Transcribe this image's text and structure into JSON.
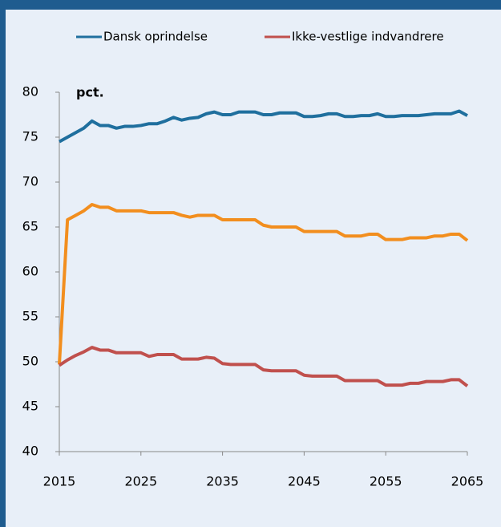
{
  "chart_data": {
    "type": "line",
    "ylabel": "pct.",
    "x": [
      2015,
      2016,
      2017,
      2018,
      2019,
      2020,
      2021,
      2022,
      2023,
      2024,
      2025,
      2026,
      2027,
      2028,
      2029,
      2030,
      2031,
      2032,
      2033,
      2034,
      2035,
      2036,
      2037,
      2038,
      2039,
      2040,
      2041,
      2042,
      2043,
      2044,
      2045,
      2046,
      2047,
      2048,
      2049,
      2050,
      2051,
      2052,
      2053,
      2054,
      2055,
      2056,
      2057,
      2058,
      2059,
      2060,
      2061,
      2062,
      2063,
      2064,
      2065
    ],
    "series": [
      {
        "name": "Dansk oprindelse",
        "color": "#1f6f9e",
        "values": [
          74.5,
          75.0,
          75.5,
          76.0,
          76.8,
          76.3,
          76.3,
          76.0,
          76.2,
          76.2,
          76.3,
          76.5,
          76.5,
          76.8,
          77.2,
          76.9,
          77.1,
          77.2,
          77.6,
          77.8,
          77.5,
          77.5,
          77.8,
          77.8,
          77.8,
          77.5,
          77.5,
          77.7,
          77.7,
          77.7,
          77.3,
          77.3,
          77.4,
          77.6,
          77.6,
          77.3,
          77.3,
          77.4,
          77.4,
          77.6,
          77.3,
          77.3,
          77.4,
          77.4,
          77.4,
          77.5,
          77.6,
          77.6,
          77.6,
          77.9,
          77.4
        ]
      },
      {
        "color": "#f28e1e",
        "values": [
          49.7,
          65.8,
          66.3,
          66.8,
          67.5,
          67.2,
          67.2,
          66.8,
          66.8,
          66.8,
          66.8,
          66.6,
          66.6,
          66.6,
          66.6,
          66.3,
          66.1,
          66.3,
          66.3,
          66.3,
          65.8,
          65.8,
          65.8,
          65.8,
          65.8,
          65.2,
          65.0,
          65.0,
          65.0,
          65.0,
          64.5,
          64.5,
          64.5,
          64.5,
          64.5,
          64.0,
          64.0,
          64.0,
          64.2,
          64.2,
          63.6,
          63.6,
          63.6,
          63.8,
          63.8,
          63.8,
          64.0,
          64.0,
          64.2,
          64.2,
          63.5
        ]
      },
      {
        "name": "Ikke-vestlige indvandrere",
        "color": "#c0504d",
        "values": [
          49.6,
          50.2,
          50.7,
          51.1,
          51.6,
          51.3,
          51.3,
          51.0,
          51.0,
          51.0,
          51.0,
          50.6,
          50.8,
          50.8,
          50.8,
          50.3,
          50.3,
          50.3,
          50.5,
          50.4,
          49.8,
          49.7,
          49.7,
          49.7,
          49.7,
          49.1,
          49.0,
          49.0,
          49.0,
          49.0,
          48.5,
          48.4,
          48.4,
          48.4,
          48.4,
          47.9,
          47.9,
          47.9,
          47.9,
          47.9,
          47.4,
          47.4,
          47.4,
          47.6,
          47.6,
          47.8,
          47.8,
          47.8,
          48.0,
          48.0,
          47.3
        ]
      }
    ],
    "xlim": [
      2015,
      2065
    ],
    "xticks": [
      2015,
      2025,
      2035,
      2045,
      2055,
      2065
    ],
    "ylim": [
      40,
      80
    ],
    "yticks": [
      40,
      45,
      50,
      55,
      60,
      65,
      70,
      75,
      80
    ],
    "legend": "top",
    "grid": false
  }
}
